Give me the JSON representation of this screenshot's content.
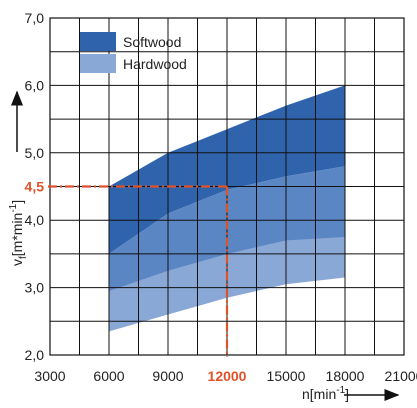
{
  "chart_data": {
    "type": "area",
    "xlim": [
      3000,
      21000
    ],
    "ylim": [
      2.0,
      7.0
    ],
    "x_ticks": [
      3000,
      6000,
      9000,
      12000,
      15000,
      18000,
      21000
    ],
    "x_tick_labels": [
      "3000",
      "6000",
      "9000",
      "12000",
      "15000",
      "18000",
      "21000"
    ],
    "y_ticks": [
      2.0,
      3.0,
      4.0,
      4.5,
      5.0,
      6.0,
      7.0
    ],
    "y_tick_labels": [
      "2,0",
      "3,0",
      "4,0",
      "4,5",
      "5,0",
      "6,0",
      "7,0"
    ],
    "xlabel": "n",
    "xlabel_unit": "[min",
    "xlabel_unit_exp": "-1",
    "xlabel_unit_close": "]",
    "ylabel": "v",
    "ylabel_sub": "f",
    "ylabel_unit": "[m*min",
    "ylabel_unit_exp": "-1",
    "ylabel_unit_close": "]",
    "grid": true,
    "legend_position": "top-left",
    "series": [
      {
        "name": "Softwood",
        "color": "#2f64ad",
        "x": [
          6000,
          9000,
          12000,
          15000,
          18000
        ],
        "upper": [
          4.5,
          5.0,
          5.35,
          5.7,
          6.0
        ],
        "lower": [
          3.5,
          4.1,
          4.45,
          4.65,
          4.8
        ]
      },
      {
        "name": "Hardwood",
        "color": "#8aa8d6",
        "x": [
          6000,
          9000,
          12000,
          15000,
          18000
        ],
        "upper": [
          3.5,
          3.7,
          3.85,
          4.0,
          4.05
        ],
        "lower": [
          2.35,
          2.6,
          2.85,
          3.05,
          3.15
        ]
      }
    ],
    "overlap": {
      "color": "#5a86c4",
      "x": [
        6000,
        9000,
        12000,
        15000,
        18000
      ],
      "upper": [
        3.5,
        4.1,
        4.45,
        4.65,
        4.8
      ],
      "lower": [
        2.95,
        3.25,
        3.5,
        3.7,
        3.75
      ]
    },
    "highlight": {
      "x": 12000,
      "y": 4.5,
      "x_label": "12000",
      "y_label": "4,5",
      "color": "#e0522a"
    }
  }
}
